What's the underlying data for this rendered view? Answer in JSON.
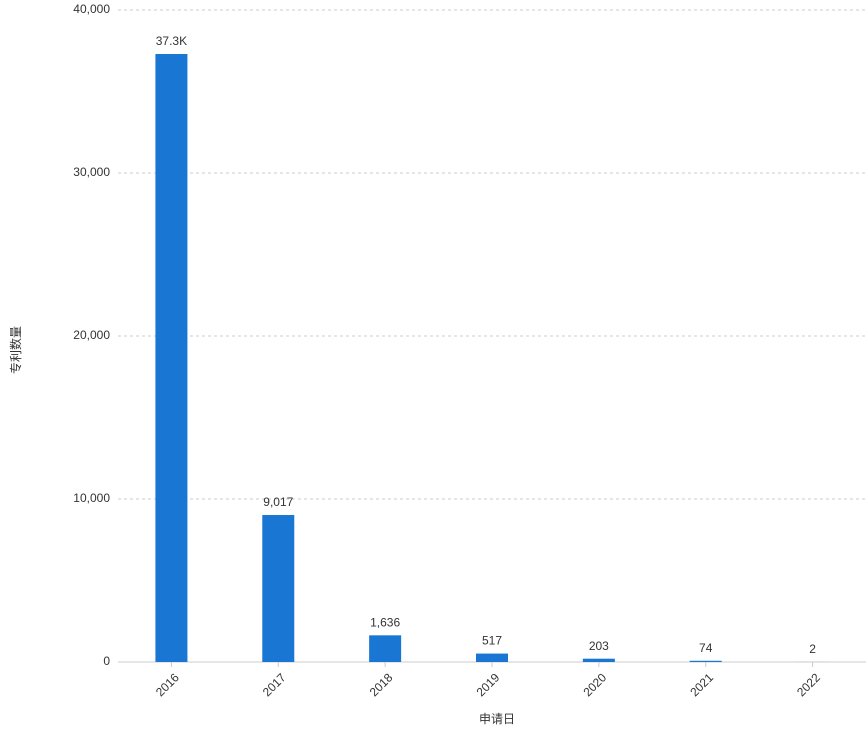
{
  "chart_data": {
    "type": "bar",
    "x_label": "申请日",
    "y_label": "专利数量",
    "categories": [
      "2016",
      "2017",
      "2018",
      "2019",
      "2020",
      "2021",
      "2022"
    ],
    "values": [
      37300,
      9017,
      1636,
      517,
      203,
      74,
      2
    ],
    "value_labels": [
      "37.3K",
      "9,017",
      "1,636",
      "517",
      "203",
      "74",
      "2"
    ],
    "color": "#1976d2",
    "ylim": [
      0,
      40000
    ],
    "yticks": [
      0,
      {
        "value": 10000,
        "label": "10,000"
      },
      {
        "value": 20000,
        "label": "20,000"
      },
      {
        "value": 30000,
        "label": "30,000"
      },
      {
        "value": 40000,
        "label": "40,000"
      }
    ],
    "grid": true
  }
}
